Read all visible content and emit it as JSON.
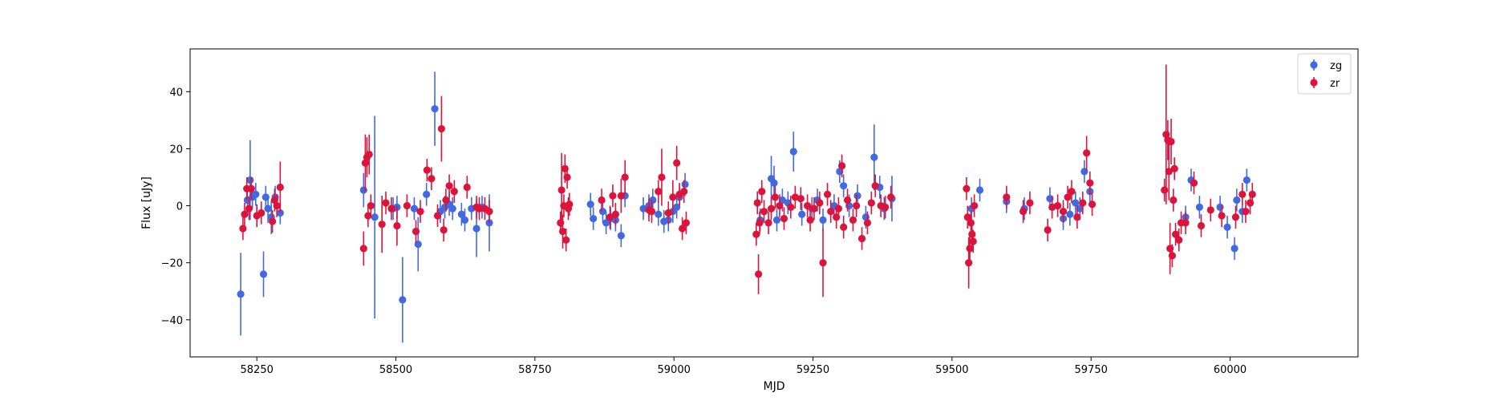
{
  "chart_data": {
    "type": "scatter",
    "title": "",
    "xlabel": "MJD",
    "ylabel": "Flux [uJy]",
    "xlim": [
      58130,
      60230
    ],
    "ylim": [
      -53,
      55
    ],
    "xticks": [
      58250,
      58500,
      58750,
      59000,
      59250,
      59500,
      59750,
      60000
    ],
    "yticks": [
      -40,
      -20,
      0,
      20,
      40
    ],
    "grid": false,
    "legend": "top-right",
    "series": [
      {
        "name": "zg",
        "color": "#4169e1",
        "points": [
          [
            58221,
            -31,
            14.5
          ],
          [
            58233,
            2,
            5
          ],
          [
            58238,
            9,
            14
          ],
          [
            58242,
            3,
            4
          ],
          [
            58248,
            4,
            4
          ],
          [
            58262,
            -24,
            8
          ],
          [
            58266,
            3,
            4
          ],
          [
            58270,
            -1,
            5
          ],
          [
            58276,
            -4,
            6
          ],
          [
            58283,
            3,
            4
          ],
          [
            58292,
            -2.5,
            4
          ],
          [
            58442,
            5.5,
            6
          ],
          [
            58462,
            -4,
            35.5
          ],
          [
            58495,
            -1,
            4
          ],
          [
            58502,
            -0.5,
            4
          ],
          [
            58512,
            -33,
            15
          ],
          [
            58533,
            -1,
            4
          ],
          [
            58540,
            -13.5,
            9.5
          ],
          [
            58555,
            4,
            4
          ],
          [
            58570,
            34,
            13
          ],
          [
            58580,
            -2,
            4
          ],
          [
            58588,
            -0.5,
            4
          ],
          [
            58596,
            0.5,
            4
          ],
          [
            58602,
            -1,
            4
          ],
          [
            58618,
            -3,
            4
          ],
          [
            58624,
            -5,
            4
          ],
          [
            58636,
            -1,
            4
          ],
          [
            58645,
            -8,
            10
          ],
          [
            58655,
            -0.5,
            4
          ],
          [
            58668,
            -6,
            10
          ],
          [
            58850,
            0.5,
            4
          ],
          [
            58855,
            -4.5,
            4
          ],
          [
            58872,
            -2,
            4
          ],
          [
            58878,
            -6,
            4
          ],
          [
            58886,
            -4.5,
            4
          ],
          [
            58895,
            -5,
            4
          ],
          [
            58905,
            -10.5,
            4
          ],
          [
            58912,
            3.5,
            4
          ],
          [
            58945,
            -1,
            4
          ],
          [
            58955,
            0,
            4
          ],
          [
            58962,
            2,
            4
          ],
          [
            58972,
            -3,
            4
          ],
          [
            58982,
            -5.5,
            4
          ],
          [
            58990,
            -5,
            4
          ],
          [
            58998,
            -2,
            4
          ],
          [
            59005,
            -0.5,
            4
          ],
          [
            59010,
            3,
            4
          ],
          [
            59020,
            7.5,
            4
          ],
          [
            59155,
            -5,
            4
          ],
          [
            59175,
            9.5,
            8
          ],
          [
            59180,
            8,
            6
          ],
          [
            59185,
            -5,
            4
          ],
          [
            59195,
            2,
            4
          ],
          [
            59205,
            1,
            4
          ],
          [
            59215,
            19,
            7
          ],
          [
            59230,
            -3,
            4
          ],
          [
            59248,
            -1,
            4
          ],
          [
            59258,
            2,
            4
          ],
          [
            59268,
            -5,
            4
          ],
          [
            59288,
            0,
            4
          ],
          [
            59298,
            12,
            4
          ],
          [
            59305,
            7,
            4
          ],
          [
            59315,
            0,
            4
          ],
          [
            59330,
            3.5,
            4
          ],
          [
            59345,
            -4,
            4
          ],
          [
            59360,
            17,
            11.5
          ],
          [
            59370,
            6.5,
            4
          ],
          [
            59378,
            -1,
            4
          ],
          [
            59392,
            2.5,
            8
          ],
          [
            59535,
            -1,
            4
          ],
          [
            59550,
            5.5,
            4
          ],
          [
            59598,
            1.5,
            4
          ],
          [
            59630,
            -1,
            4
          ],
          [
            59676,
            2.5,
            4
          ],
          [
            59700,
            -4.5,
            4
          ],
          [
            59712,
            -3,
            4
          ],
          [
            59722,
            1,
            4
          ],
          [
            59730,
            -1,
            4
          ],
          [
            59738,
            12,
            4
          ],
          [
            59748,
            5,
            4
          ],
          [
            59920,
            -4,
            4
          ],
          [
            59930,
            9,
            4
          ],
          [
            59945,
            -0.5,
            4
          ],
          [
            59982,
            -0.5,
            4
          ],
          [
            59995,
            -7.5,
            4
          ],
          [
            60008,
            -15,
            4
          ],
          [
            60012,
            2,
            4
          ],
          [
            60022,
            -2,
            4
          ],
          [
            60030,
            9,
            4
          ]
        ]
      },
      {
        "name": "zr",
        "color": "#dc143c",
        "points": [
          [
            58225,
            -8,
            4
          ],
          [
            58228,
            -3,
            4
          ],
          [
            58232,
            6,
            4
          ],
          [
            58236,
            -1,
            4
          ],
          [
            58240,
            6,
            4
          ],
          [
            58250,
            -3.5,
            4
          ],
          [
            58258,
            -2.5,
            4
          ],
          [
            58278,
            -5.5,
            4
          ],
          [
            58282,
            2,
            4
          ],
          [
            58286,
            0,
            4
          ],
          [
            58292,
            6.5,
            9
          ],
          [
            58442,
            -15,
            6
          ],
          [
            58445,
            15,
            10
          ],
          [
            58448,
            17,
            7
          ],
          [
            58450,
            -3.5,
            4
          ],
          [
            58452,
            18,
            7
          ],
          [
            58455,
            0,
            4
          ],
          [
            58475,
            -6.5,
            10
          ],
          [
            58482,
            1,
            4
          ],
          [
            58492,
            -1,
            4
          ],
          [
            58502,
            -7,
            7
          ],
          [
            58520,
            0,
            4
          ],
          [
            58536,
            -9,
            4
          ],
          [
            58544,
            -2,
            4
          ],
          [
            58556,
            12.5,
            4
          ],
          [
            58564,
            9.5,
            4
          ],
          [
            58575,
            -3.5,
            4
          ],
          [
            58582,
            27,
            11.5
          ],
          [
            58586,
            -8.5,
            4
          ],
          [
            58590,
            2,
            4
          ],
          [
            58596,
            7,
            4
          ],
          [
            58605,
            5,
            4
          ],
          [
            58628,
            6.5,
            4
          ],
          [
            58645,
            -0.5,
            4
          ],
          [
            58650,
            -1,
            4
          ],
          [
            58660,
            -1,
            4
          ],
          [
            58668,
            -2,
            4
          ],
          [
            58796,
            -6,
            4
          ],
          [
            58798,
            5.5,
            13
          ],
          [
            58800,
            -9,
            6
          ],
          [
            58802,
            0,
            4
          ],
          [
            58804,
            13,
            5
          ],
          [
            58806,
            -12,
            4
          ],
          [
            58808,
            10,
            4
          ],
          [
            58810,
            -1,
            4
          ],
          [
            58812,
            0.5,
            4
          ],
          [
            58870,
            2,
            4
          ],
          [
            58885,
            -4,
            4
          ],
          [
            58890,
            3.5,
            4
          ],
          [
            58895,
            -3,
            4
          ],
          [
            58905,
            3.5,
            6
          ],
          [
            58912,
            10,
            6
          ],
          [
            58955,
            -1.5,
            4
          ],
          [
            58960,
            -2,
            4
          ],
          [
            58972,
            5,
            4
          ],
          [
            58978,
            10,
            10
          ],
          [
            58990,
            -2.5,
            4
          ],
          [
            58998,
            3,
            6
          ],
          [
            59005,
            15,
            6
          ],
          [
            59010,
            4,
            4
          ],
          [
            59015,
            -8,
            4
          ],
          [
            59018,
            5,
            4
          ],
          [
            59022,
            -6,
            4
          ],
          [
            59148,
            -10,
            4
          ],
          [
            59150,
            1,
            4
          ],
          [
            59152,
            -24,
            7
          ],
          [
            59154,
            -6,
            4
          ],
          [
            59158,
            5,
            4
          ],
          [
            59162,
            -2,
            4
          ],
          [
            59170,
            -6,
            4
          ],
          [
            59175,
            -1,
            4
          ],
          [
            59182,
            3,
            4
          ],
          [
            59190,
            0,
            4
          ],
          [
            59198,
            -4.5,
            4
          ],
          [
            59210,
            -0.5,
            4
          ],
          [
            59218,
            3,
            4
          ],
          [
            59228,
            2.5,
            4
          ],
          [
            59240,
            0,
            4
          ],
          [
            59245,
            -5,
            4
          ],
          [
            59252,
            -1,
            4
          ],
          [
            59262,
            1,
            4
          ],
          [
            59268,
            -20,
            12
          ],
          [
            59276,
            4,
            4
          ],
          [
            59282,
            -2,
            4
          ],
          [
            59292,
            -4,
            4
          ],
          [
            59296,
            -1,
            4
          ],
          [
            59302,
            14,
            4
          ],
          [
            59305,
            -7.5,
            4
          ],
          [
            59312,
            2,
            4
          ],
          [
            59322,
            -5,
            4
          ],
          [
            59328,
            0,
            4
          ],
          [
            59338,
            -11.5,
            4
          ],
          [
            59348,
            -6,
            4
          ],
          [
            59355,
            1,
            4
          ],
          [
            59362,
            7,
            4
          ],
          [
            59372,
            0,
            4
          ],
          [
            59380,
            -0.5,
            4
          ],
          [
            59390,
            3,
            4
          ],
          [
            59526,
            6,
            4
          ],
          [
            59528,
            -4,
            4
          ],
          [
            59530,
            -20,
            9
          ],
          [
            59532,
            -15,
            6
          ],
          [
            59534,
            -6,
            4
          ],
          [
            59536,
            -10,
            4
          ],
          [
            59538,
            -12.5,
            4
          ],
          [
            59540,
            0,
            4
          ],
          [
            59598,
            3,
            4
          ],
          [
            59628,
            -2,
            4
          ],
          [
            59640,
            1,
            4
          ],
          [
            59672,
            -8.5,
            4
          ],
          [
            59680,
            -0.5,
            4
          ],
          [
            59690,
            0,
            4
          ],
          [
            59700,
            -2,
            4
          ],
          [
            59708,
            3,
            4
          ],
          [
            59715,
            5,
            4
          ],
          [
            59725,
            -4,
            4
          ],
          [
            59735,
            1,
            4
          ],
          [
            59742,
            18.5,
            6
          ],
          [
            59748,
            8,
            4
          ],
          [
            59752,
            0.5,
            4
          ],
          [
            59882,
            5.5,
            4
          ],
          [
            59885,
            25,
            24.5
          ],
          [
            59888,
            23,
            7
          ],
          [
            59890,
            12,
            10
          ],
          [
            59892,
            -15,
            9
          ],
          [
            59894,
            22.5,
            8
          ],
          [
            59896,
            -17.5,
            4
          ],
          [
            59898,
            2,
            4
          ],
          [
            59900,
            13,
            4
          ],
          [
            59902,
            -10,
            4
          ],
          [
            59908,
            -12,
            4
          ],
          [
            59912,
            -6,
            4
          ],
          [
            59920,
            -6,
            4
          ],
          [
            59935,
            8,
            4
          ],
          [
            59948,
            -7,
            4
          ],
          [
            59965,
            -1.5,
            4
          ],
          [
            59985,
            -3.5,
            4
          ],
          [
            60010,
            -4,
            4
          ],
          [
            60022,
            4,
            4
          ],
          [
            60028,
            -2,
            4
          ],
          [
            60036,
            1,
            4
          ],
          [
            60040,
            4,
            4
          ]
        ]
      }
    ]
  }
}
